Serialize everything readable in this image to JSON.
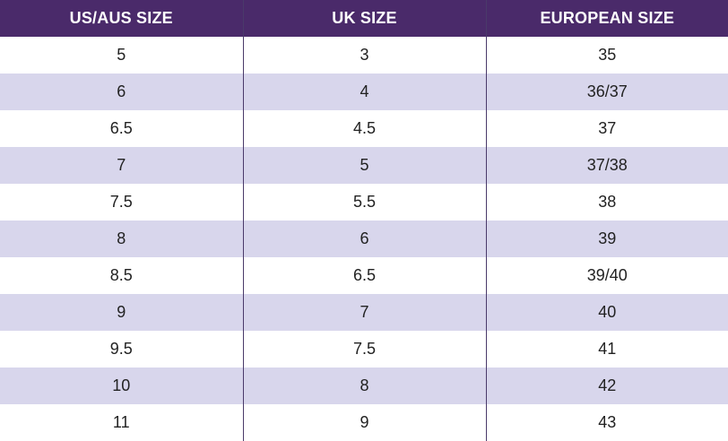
{
  "table": {
    "headers": [
      "US/AUS SIZE",
      "UK SIZE",
      "EUROPEAN SIZE"
    ],
    "rows": [
      [
        "5",
        "3",
        "35"
      ],
      [
        "6",
        "4",
        "36/37"
      ],
      [
        "6.5",
        "4.5",
        "37"
      ],
      [
        "7",
        "5",
        "37/38"
      ],
      [
        "7.5",
        "5.5",
        "38"
      ],
      [
        "8",
        "6",
        "39"
      ],
      [
        "8.5",
        "6.5",
        "39/40"
      ],
      [
        "9",
        "7",
        "40"
      ],
      [
        "9.5",
        "7.5",
        "41"
      ],
      [
        "10",
        "8",
        "42"
      ],
      [
        "11",
        "9",
        "43"
      ]
    ]
  },
  "colors": {
    "header_bg": "#4a2a6a",
    "header_text": "#ffffff",
    "stripe_bg": "#d8d6ec",
    "row_bg": "#ffffff",
    "divider": "#4a3a6a"
  }
}
